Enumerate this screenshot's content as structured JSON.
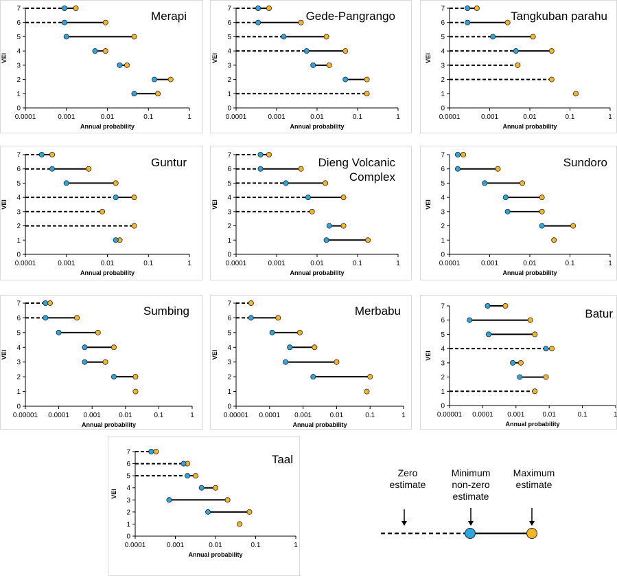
{
  "colors": {
    "min_marker": "#29a8df",
    "max_marker": "#f5b823",
    "line": "#000000",
    "frame": "#d9d9d9"
  },
  "chart_data": [
    {
      "type": "dumbbell",
      "title": "Merapi",
      "xlabel": "Annual probability",
      "ylabel": "VEI",
      "xscale": "log",
      "xlim": [
        0.0001,
        1
      ],
      "xticks": [
        "0.0001",
        "0.001",
        "0.01",
        "0.1",
        "1"
      ],
      "ylim": [
        0,
        7
      ],
      "yticks": [
        "0",
        "1",
        "2",
        "3",
        "4",
        "5",
        "6",
        "7"
      ],
      "series": [
        {
          "vei": 7,
          "zero_estimate": true,
          "min": 0.0009,
          "max": 0.0017
        },
        {
          "vei": 6,
          "zero_estimate": true,
          "min": 0.0009,
          "max": 0.009
        },
        {
          "vei": 5,
          "zero_estimate": false,
          "min": 0.001,
          "max": 0.045
        },
        {
          "vei": 4,
          "zero_estimate": false,
          "min": 0.005,
          "max": 0.009
        },
        {
          "vei": 3,
          "zero_estimate": false,
          "min": 0.02,
          "max": 0.03
        },
        {
          "vei": 2,
          "zero_estimate": false,
          "min": 0.14,
          "max": 0.35
        },
        {
          "vei": 1,
          "zero_estimate": false,
          "min": 0.045,
          "max": 0.17
        }
      ]
    },
    {
      "type": "dumbbell",
      "title": "Gede-Pangrango",
      "xlabel": "Annual probability",
      "ylabel": "VEI",
      "xscale": "log",
      "xlim": [
        0.0001,
        1
      ],
      "xticks": [
        "0.0001",
        "0.001",
        "0.01",
        "0.1",
        "1"
      ],
      "ylim": [
        0,
        7
      ],
      "yticks": [
        "0",
        "1",
        "2",
        "3",
        "4",
        "5",
        "6",
        "7"
      ],
      "series": [
        {
          "vei": 7,
          "zero_estimate": true,
          "min": 0.00035,
          "max": 0.00065
        },
        {
          "vei": 6,
          "zero_estimate": true,
          "min": 0.00035,
          "max": 0.004
        },
        {
          "vei": 5,
          "zero_estimate": true,
          "min": 0.0015,
          "max": 0.017
        },
        {
          "vei": 4,
          "zero_estimate": true,
          "min": 0.0055,
          "max": 0.05
        },
        {
          "vei": 3,
          "zero_estimate": false,
          "min": 0.008,
          "max": 0.02
        },
        {
          "vei": 2,
          "zero_estimate": false,
          "min": 0.05,
          "max": 0.17
        },
        {
          "vei": 1,
          "zero_estimate": true,
          "min": null,
          "max": 0.17
        }
      ]
    },
    {
      "type": "dumbbell",
      "title": "Tangkuban parahu",
      "xlabel": "Annual probability",
      "ylabel": "VEI",
      "xscale": "log",
      "xlim": [
        0.0001,
        1
      ],
      "xticks": [
        "0.0001",
        "0.001",
        "0.01",
        "0.1",
        "1"
      ],
      "ylim": [
        0,
        7
      ],
      "yticks": [
        "0",
        "1",
        "2",
        "3",
        "4",
        "5",
        "6",
        "7"
      ],
      "series": [
        {
          "vei": 7,
          "zero_estimate": true,
          "min": 0.00028,
          "max": 0.00048
        },
        {
          "vei": 6,
          "zero_estimate": true,
          "min": 0.00028,
          "max": 0.0028
        },
        {
          "vei": 5,
          "zero_estimate": true,
          "min": 0.0012,
          "max": 0.012
        },
        {
          "vei": 4,
          "zero_estimate": true,
          "min": 0.0045,
          "max": 0.035
        },
        {
          "vei": 3,
          "zero_estimate": true,
          "min": null,
          "max": 0.005
        },
        {
          "vei": 2,
          "zero_estimate": true,
          "min": null,
          "max": 0.035
        },
        {
          "vei": 1,
          "zero_estimate": false,
          "min": null,
          "max": 0.14
        }
      ]
    },
    {
      "type": "dumbbell",
      "title": "Guntur",
      "xlabel": "Annual probability",
      "ylabel": "VEI",
      "xscale": "log",
      "xlim": [
        0.0001,
        1
      ],
      "xticks": [
        "0.0001",
        "0.001",
        "0.01",
        "0.1",
        "1"
      ],
      "ylim": [
        0,
        7
      ],
      "yticks": [
        "0",
        "1",
        "2",
        "3",
        "4",
        "5",
        "6",
        "7"
      ],
      "series": [
        {
          "vei": 7,
          "zero_estimate": true,
          "min": 0.00025,
          "max": 0.00045
        },
        {
          "vei": 6,
          "zero_estimate": true,
          "min": 0.00045,
          "max": 0.0035
        },
        {
          "vei": 5,
          "zero_estimate": false,
          "min": 0.001,
          "max": 0.016
        },
        {
          "vei": 4,
          "zero_estimate": true,
          "min": 0.016,
          "max": 0.045
        },
        {
          "vei": 3,
          "zero_estimate": true,
          "min": null,
          "max": 0.0075
        },
        {
          "vei": 2,
          "zero_estimate": true,
          "min": null,
          "max": 0.045
        },
        {
          "vei": 1,
          "zero_estimate": false,
          "min": 0.016,
          "max": 0.02
        }
      ]
    },
    {
      "type": "dumbbell",
      "title": "Dieng Volcanic Complex",
      "title_lines": [
        "Dieng Volcanic",
        "Complex"
      ],
      "xlabel": "Annual probability",
      "ylabel": "VEI",
      "xscale": "log",
      "xlim": [
        0.0001,
        1
      ],
      "xticks": [
        "0.0001",
        "0.001",
        "0.01",
        "0.1",
        "1"
      ],
      "ylim": [
        0,
        7
      ],
      "yticks": [
        "0",
        "1",
        "2",
        "3",
        "4",
        "5",
        "6",
        "7"
      ],
      "series": [
        {
          "vei": 7,
          "zero_estimate": true,
          "min": 0.0004,
          "max": 0.00065
        },
        {
          "vei": 6,
          "zero_estimate": true,
          "min": 0.0004,
          "max": 0.004
        },
        {
          "vei": 5,
          "zero_estimate": true,
          "min": 0.0017,
          "max": 0.016
        },
        {
          "vei": 4,
          "zero_estimate": true,
          "min": 0.006,
          "max": 0.045
        },
        {
          "vei": 3,
          "zero_estimate": true,
          "min": null,
          "max": 0.0075
        },
        {
          "vei": 2,
          "zero_estimate": false,
          "min": 0.02,
          "max": 0.045
        },
        {
          "vei": 1,
          "zero_estimate": false,
          "min": 0.017,
          "max": 0.18
        }
      ]
    },
    {
      "type": "dumbbell",
      "title": "Sundoro",
      "xlabel": "Annual probability",
      "ylabel": "VEI",
      "xscale": "log",
      "xlim": [
        0.0001,
        1
      ],
      "xticks": [
        "0.0001",
        "0.001",
        "0.01",
        "0.1",
        "1"
      ],
      "ylim": [
        0,
        7
      ],
      "yticks": [
        "0",
        "1",
        "2",
        "3",
        "4",
        "5",
        "6",
        "7"
      ],
      "series": [
        {
          "vei": 7,
          "zero_estimate": false,
          "min": 0.00016,
          "max": 0.00022
        },
        {
          "vei": 6,
          "zero_estimate": false,
          "min": 0.00016,
          "max": 0.0016
        },
        {
          "vei": 5,
          "zero_estimate": false,
          "min": 0.00075,
          "max": 0.0065
        },
        {
          "vei": 4,
          "zero_estimate": false,
          "min": 0.0025,
          "max": 0.02
        },
        {
          "vei": 3,
          "zero_estimate": false,
          "min": 0.0028,
          "max": 0.02
        },
        {
          "vei": 2,
          "zero_estimate": false,
          "min": 0.02,
          "max": 0.12
        },
        {
          "vei": 1,
          "zero_estimate": false,
          "min": null,
          "max": 0.04
        }
      ]
    },
    {
      "type": "dumbbell",
      "title": "Sumbing",
      "xlabel": "Annual probability",
      "ylabel": "VEI",
      "xscale": "log",
      "xlim": [
        1e-05,
        1
      ],
      "xticks": [
        "0.00001",
        "0.0001",
        "0.001",
        "0.01",
        "0.1",
        "1"
      ],
      "ylim": [
        0,
        7
      ],
      "yticks": [
        "0",
        "1",
        "2",
        "3",
        "4",
        "5",
        "6",
        "7"
      ],
      "series": [
        {
          "vei": 7,
          "zero_estimate": true,
          "min": 4e-05,
          "max": 5.5e-05
        },
        {
          "vei": 6,
          "zero_estimate": true,
          "min": 4e-05,
          "max": 0.00035
        },
        {
          "vei": 5,
          "zero_estimate": false,
          "min": 0.0001,
          "max": 0.0015
        },
        {
          "vei": 4,
          "zero_estimate": false,
          "min": 0.0006,
          "max": 0.0045
        },
        {
          "vei": 3,
          "zero_estimate": false,
          "min": 0.0006,
          "max": 0.0025
        },
        {
          "vei": 2,
          "zero_estimate": false,
          "min": 0.0045,
          "max": 0.02
        },
        {
          "vei": 1,
          "zero_estimate": false,
          "min": null,
          "max": 0.02
        }
      ]
    },
    {
      "type": "dumbbell",
      "title": "Merbabu",
      "xlabel": "Annual probability",
      "ylabel": "VEI",
      "xscale": "log",
      "xlim": [
        1e-05,
        1
      ],
      "xticks": [
        "0.00001",
        "0.0001",
        "0.001",
        "0.01",
        "0.1",
        "1"
      ],
      "ylim": [
        0,
        7
      ],
      "yticks": [
        "0",
        "1",
        "2",
        "3",
        "4",
        "5",
        "6",
        "7"
      ],
      "series": [
        {
          "vei": 7,
          "zero_estimate": true,
          "min": null,
          "max": 2.8e-05
        },
        {
          "vei": 6,
          "zero_estimate": true,
          "min": 2.8e-05,
          "max": 0.00018
        },
        {
          "vei": 5,
          "zero_estimate": false,
          "min": 0.00012,
          "max": 0.0008
        },
        {
          "vei": 4,
          "zero_estimate": false,
          "min": 0.0004,
          "max": 0.0022
        },
        {
          "vei": 3,
          "zero_estimate": false,
          "min": 0.0003,
          "max": 0.01
        },
        {
          "vei": 2,
          "zero_estimate": false,
          "min": 0.002,
          "max": 0.1
        },
        {
          "vei": 1,
          "zero_estimate": false,
          "min": null,
          "max": 0.08
        }
      ]
    },
    {
      "type": "dumbbell",
      "title": "Batur",
      "xlabel": "Annual probability",
      "ylabel": "VEI",
      "xscale": "log",
      "xlim": [
        1e-05,
        1
      ],
      "xticks": [
        "0.00001",
        "0.0001",
        "0.001",
        "0.01",
        "0.1",
        "1"
      ],
      "ylim": [
        0,
        7
      ],
      "yticks": [
        "0",
        "1",
        "2",
        "3",
        "4",
        "5",
        "6",
        "7"
      ],
      "series": [
        {
          "vei": 7,
          "zero_estimate": false,
          "min": 0.00014,
          "max": 0.00048
        },
        {
          "vei": 6,
          "zero_estimate": false,
          "min": 4e-05,
          "max": 0.0027
        },
        {
          "vei": 5,
          "zero_estimate": false,
          "min": 0.00015,
          "max": 0.0037
        },
        {
          "vei": 4,
          "zero_estimate": true,
          "min": 0.008,
          "max": 0.012
        },
        {
          "vei": 3,
          "zero_estimate": false,
          "min": 0.0008,
          "max": 0.0014
        },
        {
          "vei": 2,
          "zero_estimate": false,
          "min": 0.0013,
          "max": 0.008
        },
        {
          "vei": 1,
          "zero_estimate": true,
          "min": null,
          "max": 0.0037
        }
      ]
    },
    {
      "type": "dumbbell",
      "title": "Taal",
      "xlabel": "Annual probability",
      "ylabel": "VEI",
      "xscale": "log",
      "xlim": [
        0.0001,
        1
      ],
      "xticks": [
        "0.0001",
        "0.001",
        "0.01",
        "0.1",
        "1"
      ],
      "ylim": [
        0,
        7
      ],
      "yticks": [
        "0",
        "1",
        "2",
        "3",
        "4",
        "5",
        "6",
        "7"
      ],
      "series": [
        {
          "vei": 7,
          "zero_estimate": true,
          "min": 0.00025,
          "max": 0.00033
        },
        {
          "vei": 6,
          "zero_estimate": true,
          "min": 0.0016,
          "max": 0.002
        },
        {
          "vei": 5,
          "zero_estimate": true,
          "min": 0.002,
          "max": 0.0032
        },
        {
          "vei": 4,
          "zero_estimate": false,
          "min": 0.0045,
          "max": 0.01
        },
        {
          "vei": 3,
          "zero_estimate": false,
          "min": 0.0007,
          "max": 0.02
        },
        {
          "vei": 2,
          "zero_estimate": false,
          "min": 0.0065,
          "max": 0.07
        },
        {
          "vei": 1,
          "zero_estimate": false,
          "min": null,
          "max": 0.04
        }
      ]
    }
  ],
  "legend": {
    "zero_label_lines": [
      "Zero",
      "estimate"
    ],
    "min_label_lines": [
      "Minimum",
      "non-zero",
      "estimate"
    ],
    "max_label_lines": [
      "Maximum",
      "estimate"
    ]
  }
}
